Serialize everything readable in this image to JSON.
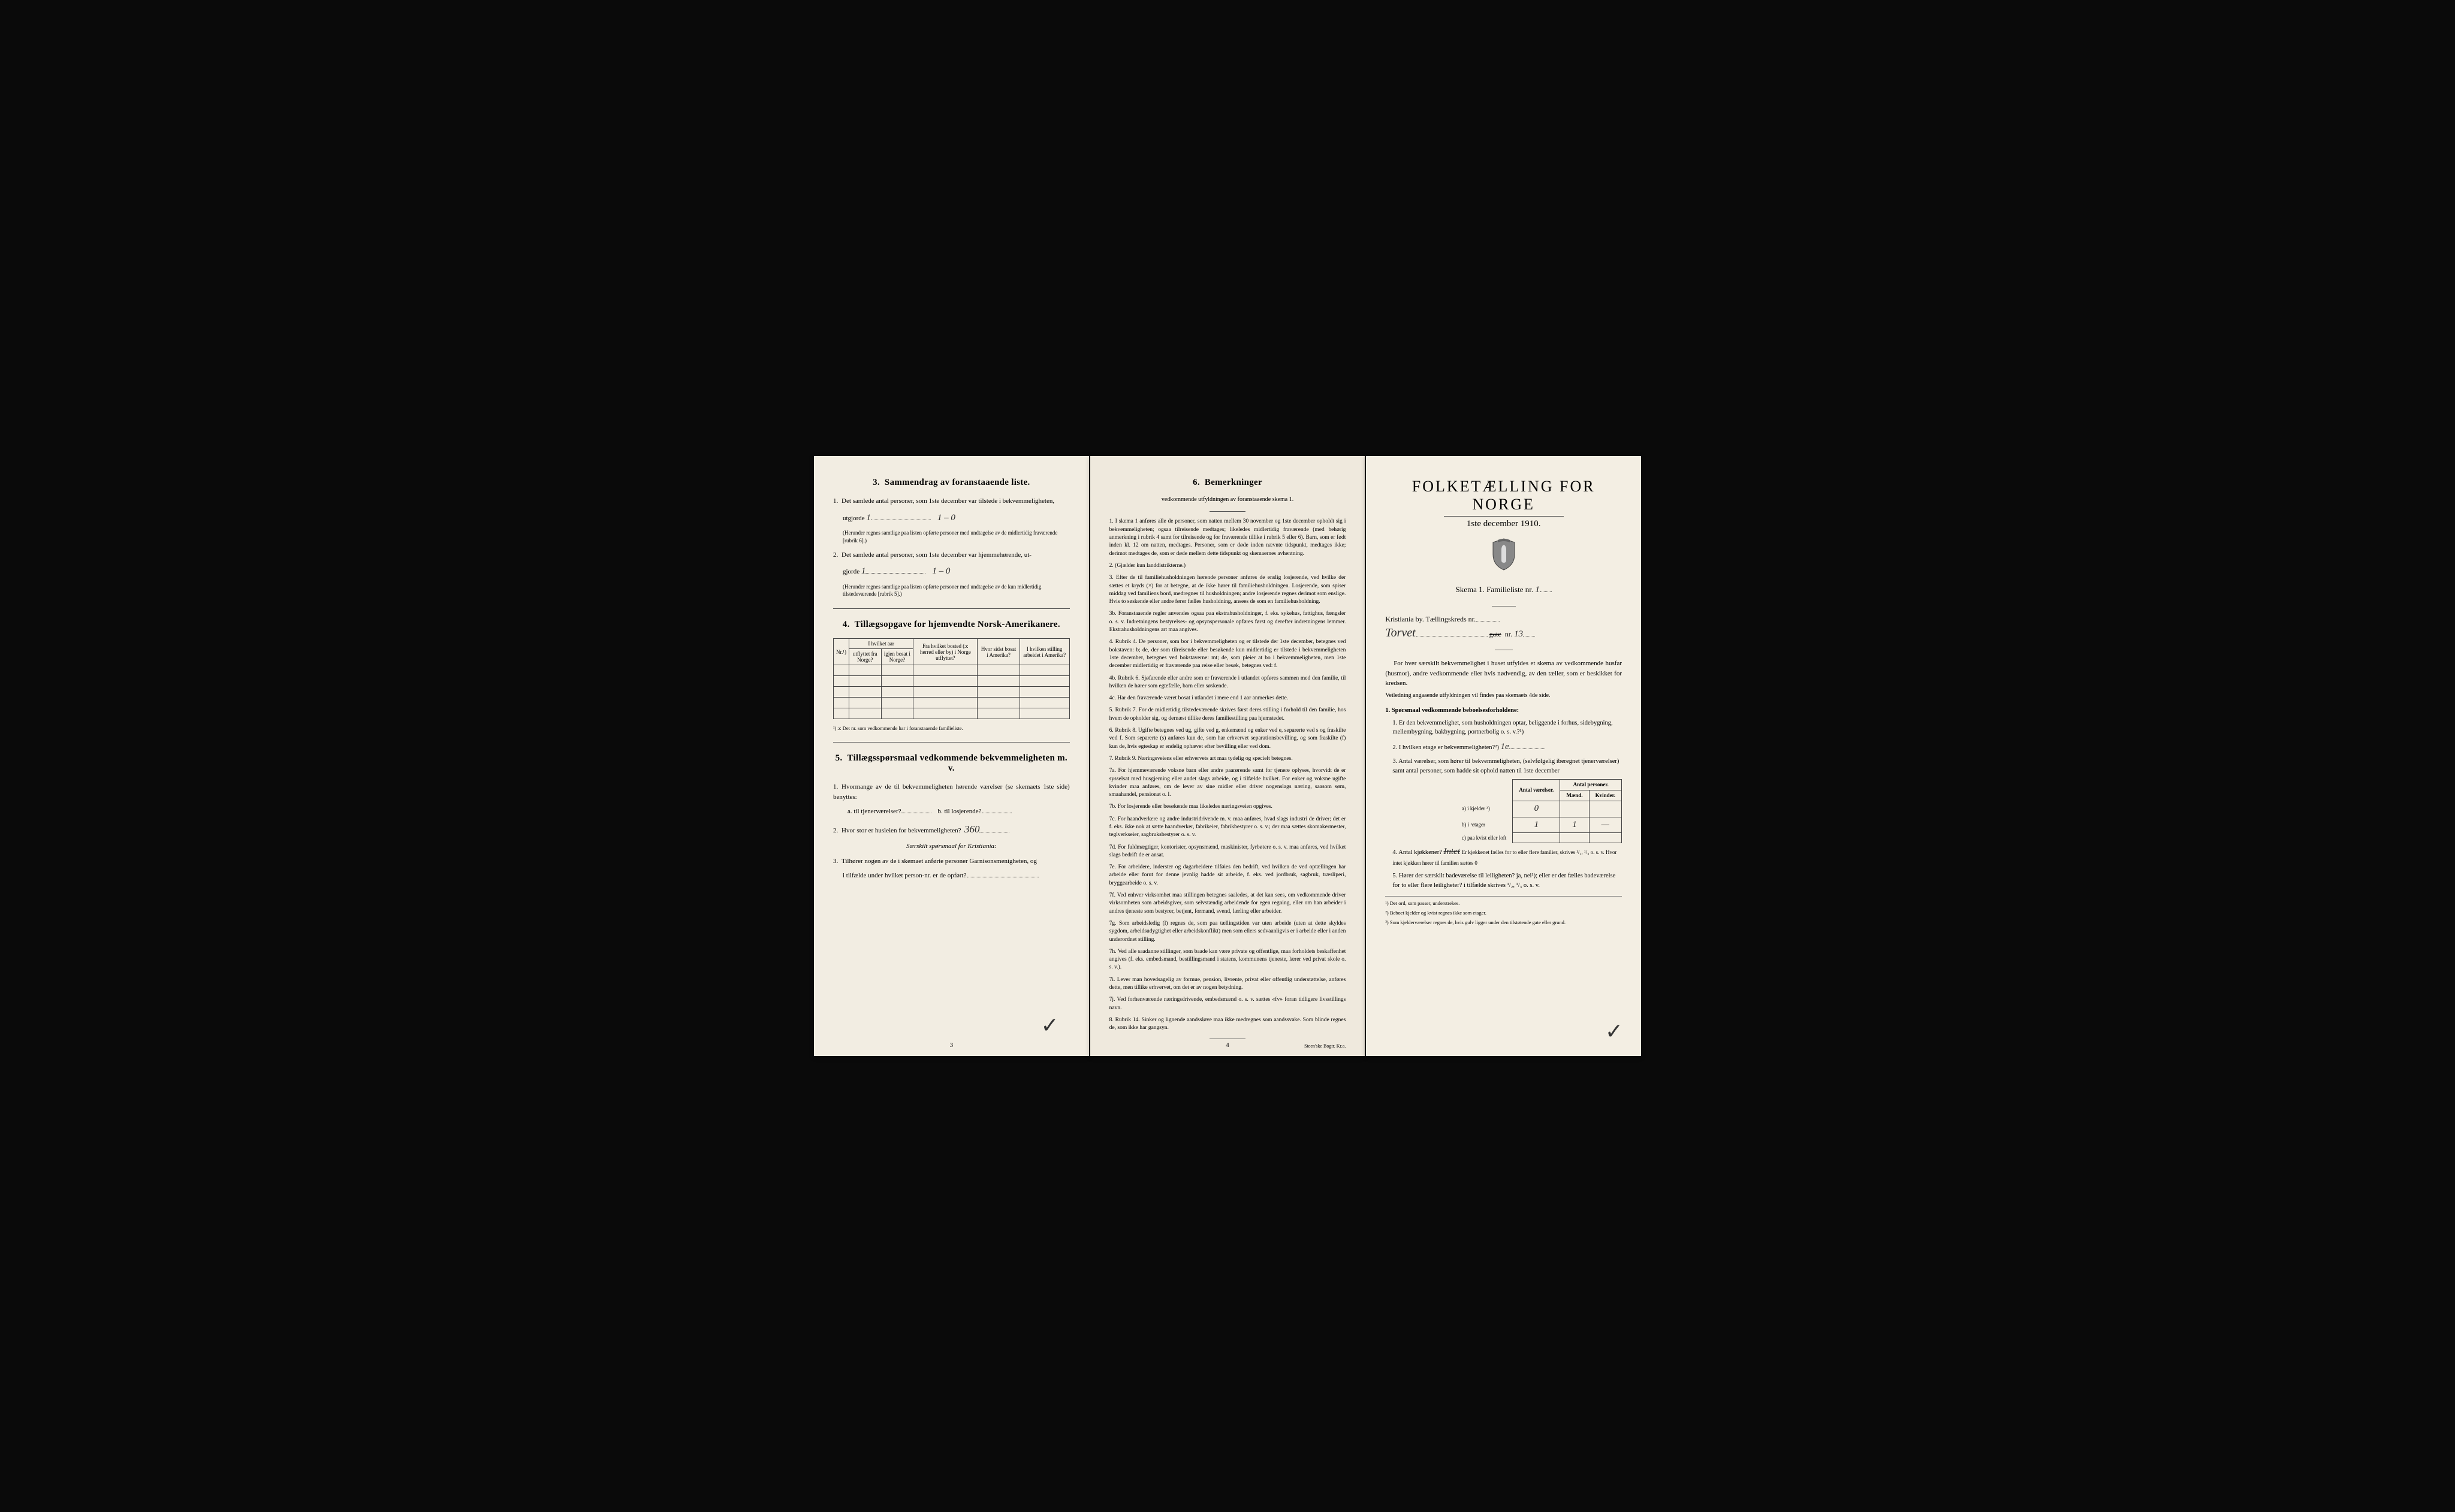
{
  "page_left": {
    "section3": {
      "title_num": "3.",
      "title": "Sammendrag av foranstaaende liste.",
      "item1": "Det samlede antal personer, som 1ste december var tilstede i bekvemmeligheten,",
      "item1_label": "utgjorde",
      "item1_value": "1",
      "item1_hand": "1 – 0",
      "note1": "(Herunder regnes samtlige paa listen opførte personer med undtagelse av de midlertidig fraværende [rubrik 6].)",
      "item2": "Det samlede antal personer, som 1ste december var hjemmehørende, ut-",
      "item2_label": "gjorde",
      "item2_value": "1",
      "item2_hand": "1 – 0",
      "note2": "(Herunder regnes samtlige paa listen opførte personer med undtagelse av de kun midlertidig tilstedeværende [rubrik 5].)"
    },
    "section4": {
      "title_num": "4.",
      "title": "Tillægsopgave for hjemvendte Norsk-Amerikanere.",
      "headers": {
        "nr": "Nr.¹)",
        "col1_top": "I hvilket aar",
        "col1a": "utflyttet fra Norge?",
        "col1b": "igjen bosat i Norge?",
        "col2": "Fra hvilket bosted (ɔ: herred eller by) i Norge utflyttet?",
        "col3": "Hvor sidst bosat i Amerika?",
        "col4": "I hvilken stilling arbeidet i Amerika?"
      },
      "footnote": "¹) ɔ: Det nr. som vedkommende har i foranstaaende familieliste."
    },
    "section5": {
      "title_num": "5.",
      "title": "Tillægsspørsmaal vedkommende bekvemmeligheten m. v.",
      "q1": "Hvormange av de til bekvemmeligheten hørende værelser (se skemaets 1ste side) benyttes:",
      "q1a_label": "a. til tjenerværelser?",
      "q1b_label": "b. til losjerende?",
      "q2": "Hvor stor er husleien for bekvemmeligheten?",
      "q2_value": "360",
      "q2_sub": "Særskilt spørsmaal for Kristiania:",
      "q3": "Tilhører nogen av de i skemaet anførte personer Garnisonsmenigheten, og",
      "q3_cont": "i tilfælde under hvilket person-nr. er de opført?"
    },
    "page_num": "3"
  },
  "page_mid": {
    "section6": {
      "title_num": "6.",
      "title": "Bemerkninger",
      "subtitle": "vedkommende utfyldningen av foranstaaende skema 1.",
      "rules": [
        "1. I skema 1 anføres alle de personer, som natten mellem 30 november og 1ste december opholdt sig i bekvemmeligheten; ogsaa tilreisende medtages; likeledes midlertidig fraværende (med behørig anmerkning i rubrik 4 samt for tilreisende og for fraværende tillike i rubrik 5 eller 6). Barn, som er født inden kl. 12 om natten, medtages. Personer, som er døde inden nævnte tidspunkt, medtages ikke; derimot medtages de, som er døde mellem dette tidspunkt og skemaernes avhentning.",
        "2. (Gjælder kun landdistrikterne.)",
        "3. Efter de til familiehusholdningen hørende personer anføres de enslig losjerende, ved hvilke der sættes et kryds (×) for at betegne, at de ikke hører til familiehusholdningen. Losjerende, som spiser middag ved familiens bord, medregnes til husholdningen; andre losjerende regnes derimot som enslige. Hvis to søskende eller andre fører fælles husholdning, ansees de som en familiehusholdning.",
        "3b. Foranstaaende regler anvendes ogsaa paa ekstrahusholdninger, f. eks. sykehus, fattighus, fængsler o. s. v. Indretningens bestyrelses- og opsynspersonale opføres først og derefter indretningens lemmer. Ekstrahusholdningens art maa angives.",
        "4. Rubrik 4. De personer, som bor i bekvemmeligheten og er tilstede der 1ste december, betegnes ved bokstaven: b; de, der som tilreisende eller besøkende kun midlertidig er tilstede i bekvemmeligheten 1ste december, betegnes ved bokstaverne: mt; de, som pleier at bo i bekvemmeligheten, men 1ste december midlertidig er fraværende paa reise eller besøk, betegnes ved: f.",
        "4b. Rubrik 6. Sjøfarende eller andre som er fraværende i utlandet opføres sammen med den familie, til hvilken de hører som egtefælle, barn eller søskende.",
        "4c. Har den fraværende været bosat i utlandet i mere end 1 aar anmerkes dette.",
        "5. Rubrik 7. For de midlertidig tilstedeværende skrives først deres stilling i forhold til den familie, hos hvem de opholder sig, og dernæst tillike deres familiestilling paa hjemstedet.",
        "6. Rubrik 8. Ugifte betegnes ved ug, gifte ved g, enkemænd og enker ved e, separerte ved s og fraskilte ved f. Som separerte (s) anføres kun de, som har erhvervet separationsbevilling, og som fraskilte (f) kun de, hvis egteskap er endelig ophævet efter bevilling eller ved dom.",
        "7. Rubrik 9. Næringsveiens eller erhvervets art maa tydelig og specielt betegnes.",
        "7a. For hjemmeværende voksne barn eller andre paarørende samt for tjenere oplyses, hvorvidt de er sysselsat med husgjerning eller andet slags arbeide, og i tilfælde hvilket. For enker og voksne ugifte kvinder maa anføres, om de lever av sine midler eller driver nogenslags næring, saasom søm, smaahandel, pensionat o. l.",
        "7b. For losjerende eller besøkende maa likeledes næringsveien opgives.",
        "7c. For haandverkere og andre industridrivende m. v. maa anføres, hvad slags industri de driver; det er f. eks. ikke nok at sætte haandverker, fabrikeier, fabrikbestyrer o. s. v.; der maa sættes skomakermester, teglverkseier, sagbruksbestyrer o. s. v.",
        "7d. For fuldmægtiger, kontorister, opsynsmænd, maskinister, fyrbøtere o. s. v. maa anføres, ved hvilket slags bedrift de er ansat.",
        "7e. For arbeidere, inderster og dagarbeidere tilføies den bedrift, ved hvilken de ved optællingen har arbeide eller forut for denne jevnlig hadde sit arbeide, f. eks. ved jordbruk, sagbruk, træsliperi, bryggearbeide o. s. v.",
        "7f. Ved enhver virksomhet maa stillingen betegnes saaledes, at det kan sees, om vedkommende driver virksomheten som arbeidsgiver, som selvstændig arbeidende for egen regning, eller om han arbeider i andres tjeneste som bestyrer, betjent, formand, svend, lærling eller arbeider.",
        "7g. Som arbeidsledig (l) regnes de, som paa tællingstiden var uten arbeide (uten at dette skyldes sygdom, arbeidsudygtighet eller arbeidskonflikt) men som ellers sedvaanligvis er i arbeide eller i anden underordnet stilling.",
        "7h. Ved alle saadanne stillinger, som baade kan være private og offentlige, maa forholdets beskaffenhet angives (f. eks. embedsmand, bestillingsmand i statens, kommunens tjeneste, lærer ved privat skole o. s. v.).",
        "7i. Lever man hovedsagelig av formue, pension, livrente, privat eller offentlig understøttelse, anføres dette, men tillike erhvervet, om det er av nogen betydning.",
        "7j. Ved forhenværende næringsdrivende, embedsmænd o. s. v. sættes «fv» foran tidligere livsstillings navn.",
        "8. Rubrik 14. Sinker og lignende aandssløve maa ikke medregnes som aandssvake. Som blinde regnes de, som ikke har gangsyn."
      ]
    },
    "page_num": "4",
    "printer": "Steen'ske Bogtr. Kr.a."
  },
  "page_right": {
    "main_title": "FOLKETÆLLING FOR NORGE",
    "date": "1ste december 1910.",
    "skema_label": "Skema 1.  Familieliste nr.",
    "skema_value": "1",
    "city_label": "Kristiania by.  Tællingskreds nr.",
    "street_hand": "Torvet",
    "street_label": "gate",
    "street_nr_label": "nr.",
    "street_nr_value": "13",
    "intro": "For hver særskilt bekvemmelighet i huset utfyldes et skema av vedkommende husfar (husmor), andre vedkommende eller hvis nødvendig, av den tæller, som er beskikket for kredsen.",
    "intro_sub": "Veiledning angaaende utfyldningen vil findes paa skemaets 4de side.",
    "q_title_num": "1.",
    "q_title": "Spørsmaal vedkommende beboelsesforholdene:",
    "q1": "1. Er den bekvemmelighet, som husholdningen optar, beliggende i forhus, sidebygning, mellembygning, bakbygning, portnerbolig o. s. v.?¹)",
    "q2": "2. I hvilken etage er bekvemmeligheten?²)",
    "q2_value": "1e",
    "q3": "3. Antal værelser, som hører til bekvemmeligheten, (selvfølgelig iberegnet tjenerværelser) samt antal personer, som hadde sit ophold natten til 1ste december",
    "table": {
      "h1": "Antal værelser.",
      "h2": "Antal personer.",
      "h2a": "Mænd.",
      "h2b": "Kvinder.",
      "row_a": "a) i kjelder ³)",
      "row_b": "b) i ¹etager",
      "row_c": "c) paa kvist eller loft",
      "val_a": "0",
      "val_b_rooms": "1",
      "val_b_m": "1",
      "val_b_k": "—"
    },
    "q4": "4. Antal kjøkkener?",
    "q4_hand": "Intet",
    "q4_cont": "Er kjøkkenet fælles for to eller flere familier, skrives ¹/₂, ¹/₃ o. s. v. Hvor intet kjøkken hører til familien sættes 0",
    "q5": "5. Hører der særskilt badeværelse til leiligheten? ja, nei¹); eller er der fælles badeværelse for to eller flere leiligheter? i tilfælde skrives ¹/₂, ¹/₃ o. s. v.",
    "fn1": "¹) Det ord, som passer, understrekes.",
    "fn2": "²) Beboet kjelder og kvist regnes ikke som etager.",
    "fn3": "³) Som kjelderværelser regnes de, hvis gulv ligger under den tilstøtende gate eller grund."
  },
  "colors": {
    "paper": "#f0ebe0",
    "ink": "#1a1a1a",
    "border": "#444444"
  }
}
